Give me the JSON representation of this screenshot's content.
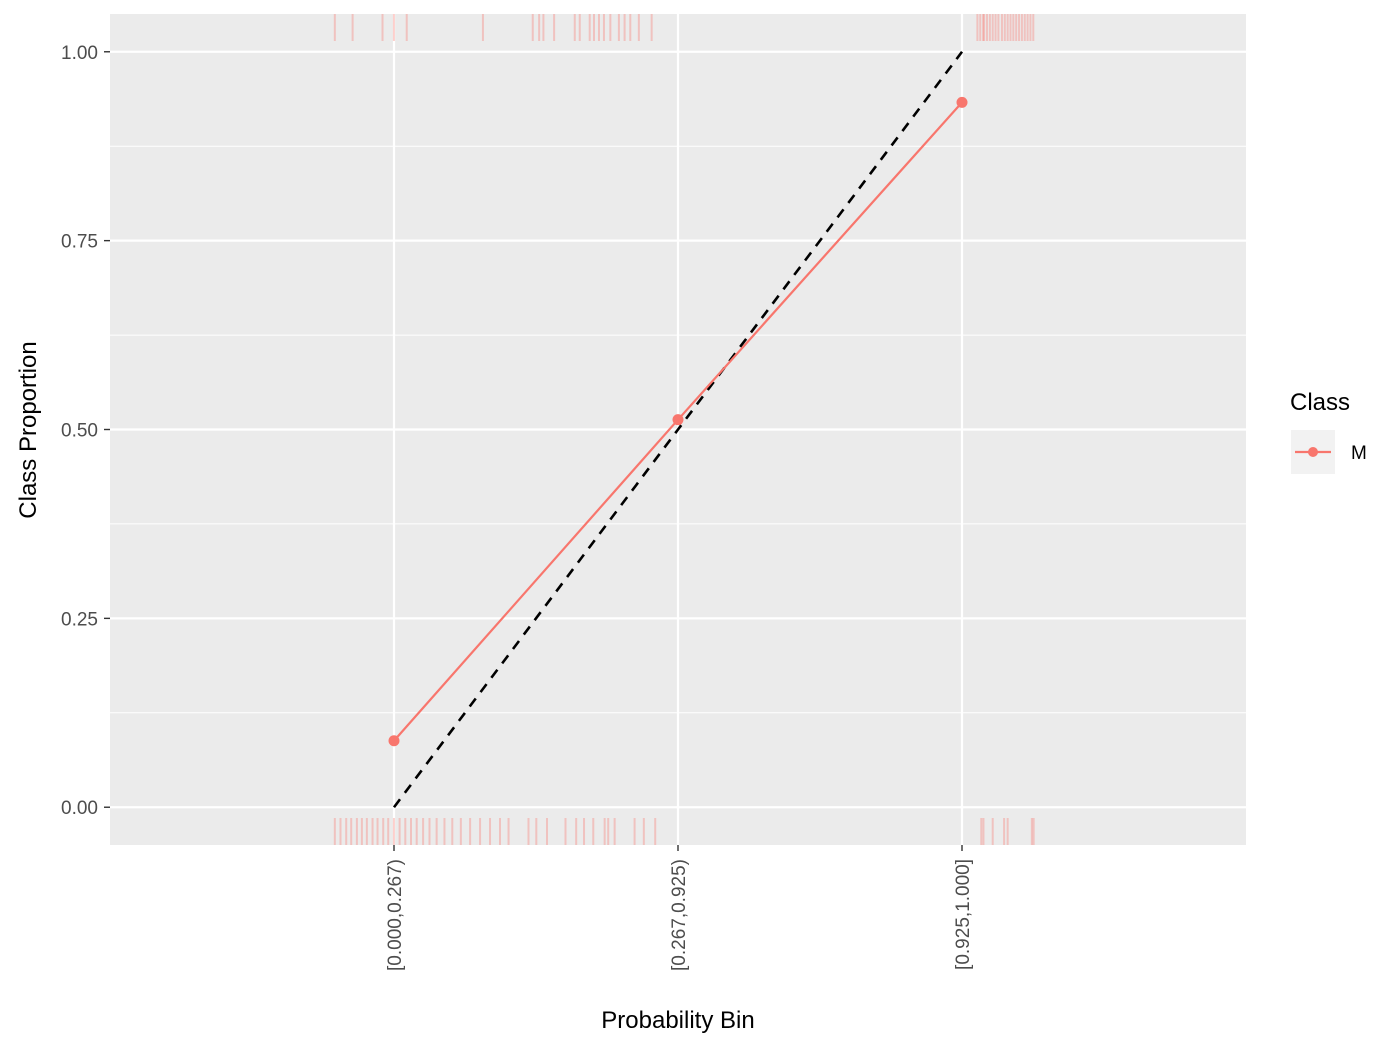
{
  "chart_data": {
    "type": "line",
    "xlabel": "Probability Bin",
    "ylabel": "Class Proportion",
    "categories": [
      "[0.000,0.267)",
      "[0.267,0.925)",
      "[0.925,1.000]"
    ],
    "y_ticks": [
      "0.00",
      "0.25",
      "0.50",
      "0.75",
      "1.00"
    ],
    "ylim": [
      -0.05,
      1.05
    ],
    "grid": true,
    "legend": {
      "title": "Class",
      "position": "right",
      "entries": [
        "M"
      ]
    },
    "series": [
      {
        "name": "M",
        "color": "#F8766D",
        "values": [
          0.088,
          0.513,
          0.933
        ]
      }
    ],
    "reference_line": {
      "style": "dashed",
      "color": "#000000",
      "values": [
        0.0,
        0.5,
        1.0
      ]
    },
    "rug_top": [
      0.018,
      0.043,
      0.085,
      0.101,
      0.119,
      0.226,
      0.296,
      0.305,
      0.311,
      0.326,
      0.355,
      0.362,
      0.376,
      0.382,
      0.389,
      0.396,
      0.405,
      0.417,
      0.425,
      0.433,
      0.445,
      0.463,
      0.93,
      0.934,
      0.938,
      0.942,
      0.946,
      0.95,
      0.955,
      0.959,
      0.963,
      0.967,
      0.971,
      0.975,
      0.979,
      0.983,
      0.987,
      0.991,
      0.995,
      0.999,
      0.9205,
      0.9245,
      0.9285
    ],
    "rug_bottom": [
      0.018,
      0.026,
      0.034,
      0.041,
      0.049,
      0.056,
      0.063,
      0.071,
      0.078,
      0.086,
      0.093,
      0.101,
      0.109,
      0.117,
      0.125,
      0.133,
      0.142,
      0.151,
      0.161,
      0.172,
      0.183,
      0.195,
      0.208,
      0.222,
      0.236,
      0.25,
      0.262,
      0.29,
      0.301,
      0.316,
      0.342,
      0.357,
      0.368,
      0.381,
      0.397,
      0.402,
      0.411,
      0.439,
      0.452,
      0.468,
      0.926,
      0.929,
      0.942,
      0.958,
      0.963,
      0.997,
      0.9995
    ]
  }
}
